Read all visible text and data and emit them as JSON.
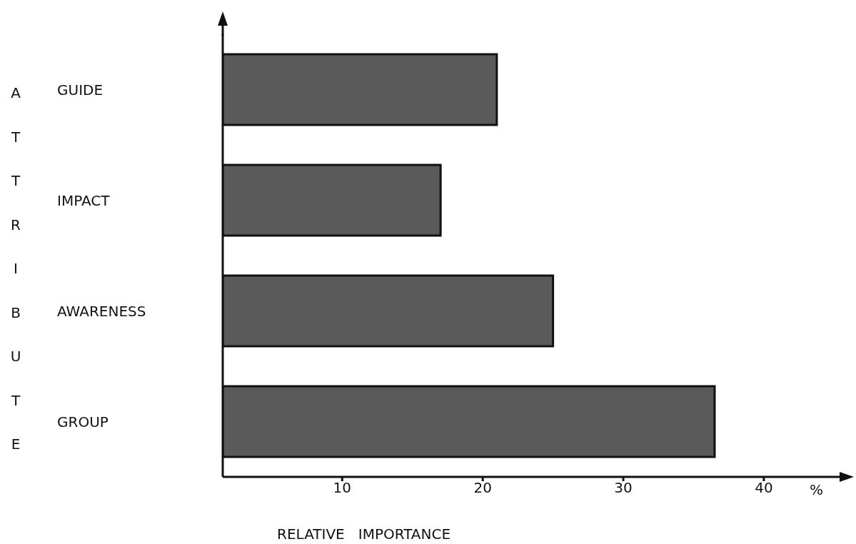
{
  "chart_data": {
    "type": "bar",
    "orientation": "horizontal",
    "categories": [
      "GUIDE",
      "IMPACT",
      "AWARENESS",
      "GROUP"
    ],
    "values": [
      21,
      17,
      25,
      36.5
    ],
    "color": "#5a5a5a",
    "xlim": [
      1.5,
      46
    ],
    "xticks": [
      10,
      20,
      30,
      40
    ],
    "xlabel": "RELATIVE   IMPORTANCE",
    "ylabel": "ATTRIBUTE",
    "annotations": [
      "%"
    ],
    "grid": false,
    "legend": false
  }
}
